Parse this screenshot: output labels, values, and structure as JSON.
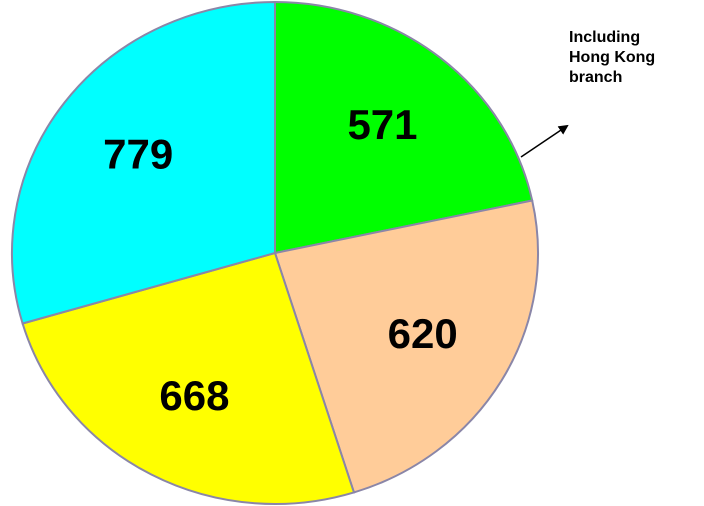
{
  "chart_data": {
    "type": "pie",
    "values": [
      571,
      620,
      668,
      779
    ],
    "colors": [
      "#00ff00",
      "#ffcc99",
      "#ffff00",
      "#00ffff"
    ],
    "annotation": "Including Hong Kong branch"
  }
}
